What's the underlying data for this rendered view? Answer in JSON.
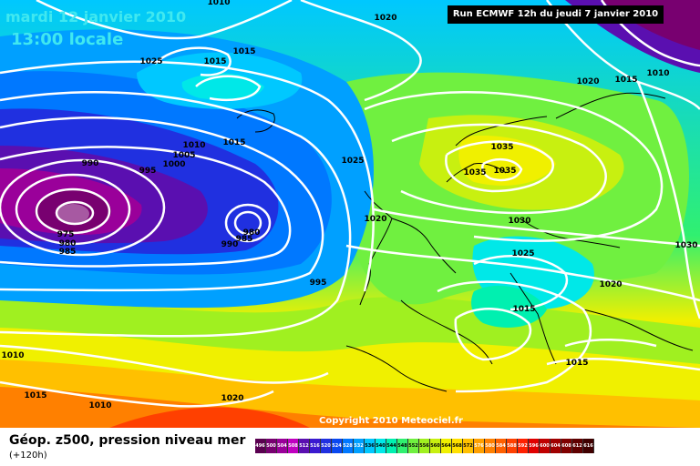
{
  "header": {
    "date": "mardi 12 janvier 2010",
    "time": "13:00 locale",
    "run": "Run ECMWF 12h du jeudi 7 janvier 2010"
  },
  "copyright": "Copyright 2010 Meteociel.fr",
  "footer": {
    "title": "Géop. z500, pression niveau mer",
    "subtitle": "(+120h)"
  },
  "legend": {
    "values": [
      "496",
      "500",
      "504",
      "508",
      "512",
      "516",
      "520",
      "524",
      "528",
      "532",
      "536",
      "540",
      "544",
      "548",
      "552",
      "556",
      "560",
      "564",
      "568",
      "572",
      "576",
      "580",
      "584",
      "588",
      "592",
      "596",
      "600",
      "604",
      "608",
      "612",
      "616"
    ],
    "colors": [
      "#5a0050",
      "#780070",
      "#9a009a",
      "#c000c0",
      "#5a0fb0",
      "#3a1ad0",
      "#2030e0",
      "#0a48f0",
      "#0078ff",
      "#00a0ff",
      "#00c8ff",
      "#00e8e8",
      "#00f0b0",
      "#30f070",
      "#70f040",
      "#a0f020",
      "#c8f010",
      "#f0f000",
      "#ffe000",
      "#ffc000",
      "#ffa000",
      "#ff8000",
      "#ff6000",
      "#ff4000",
      "#ff2000",
      "#e00000",
      "#c00000",
      "#a00000",
      "#800000",
      "#600000",
      "#400000"
    ]
  },
  "isobar_labels": [
    {
      "text": "1010"
    },
    {
      "text": "1020"
    },
    {
      "text": "1025"
    },
    {
      "text": "1015"
    },
    {
      "text": "1015"
    },
    {
      "text": "1010"
    },
    {
      "text": "1015"
    },
    {
      "text": "1005"
    },
    {
      "text": "1000"
    },
    {
      "text": "990"
    },
    {
      "text": "995"
    },
    {
      "text": "1025"
    },
    {
      "text": "1035"
    },
    {
      "text": "1035"
    },
    {
      "text": "1035"
    },
    {
      "text": "1020"
    },
    {
      "text": "1015"
    },
    {
      "text": "1010"
    },
    {
      "text": "1030"
    },
    {
      "text": "975"
    },
    {
      "text": "980"
    },
    {
      "text": "985"
    },
    {
      "text": "990"
    },
    {
      "text": "985"
    },
    {
      "text": "980"
    },
    {
      "text": "1020"
    },
    {
      "text": "1025"
    },
    {
      "text": "1030"
    },
    {
      "text": "995"
    },
    {
      "text": "1020"
    },
    {
      "text": "1015"
    },
    {
      "text": "1010"
    },
    {
      "text": "1015"
    },
    {
      "text": "1015"
    },
    {
      "text": "1010"
    },
    {
      "text": "1020"
    }
  ]
}
